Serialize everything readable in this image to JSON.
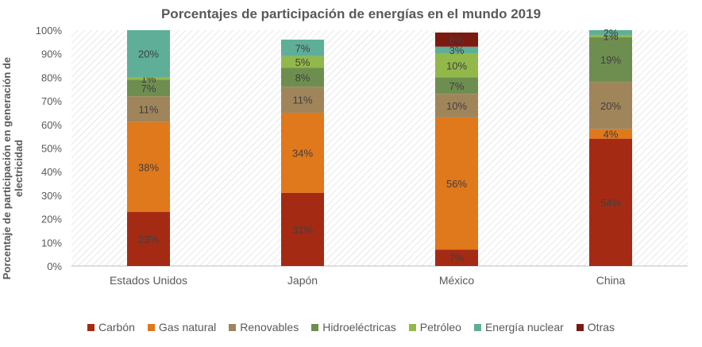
{
  "chart_data": {
    "type": "bar",
    "stacked": true,
    "title": "Porcentajes de participación de energías en el mundo 2019",
    "xlabel": "",
    "ylabel": "Porcentaje de participación en generación de electricidad",
    "ylim": [
      0,
      100
    ],
    "yticks": [
      "0%",
      "10%",
      "20%",
      "30%",
      "40%",
      "50%",
      "60%",
      "70%",
      "80%",
      "90%",
      "100%"
    ],
    "categories": [
      "Estados Unidos",
      "Japón",
      "México",
      "China"
    ],
    "series": [
      {
        "name": "Carbón",
        "color": "#A52A14",
        "values": [
          23,
          31,
          7,
          54
        ],
        "labels": [
          "23%",
          "31%",
          "7%",
          "54%"
        ]
      },
      {
        "name": "Gas natural",
        "color": "#E0781C",
        "values": [
          38,
          34,
          56,
          4
        ],
        "labels": [
          "38%",
          "34%",
          "56%",
          "4%"
        ]
      },
      {
        "name": "Renovables",
        "color": "#A0855B",
        "values": [
          11,
          11,
          10,
          20
        ],
        "labels": [
          "11%",
          "11%",
          "10%",
          "20%"
        ]
      },
      {
        "name": "Hidroeléctricas",
        "color": "#6E8E50",
        "values": [
          7,
          8,
          7,
          19
        ],
        "labels": [
          "7%",
          "8%",
          "7%",
          "19%"
        ]
      },
      {
        "name": "Petróleo",
        "color": "#92B74A",
        "values": [
          1,
          5,
          10,
          1
        ],
        "labels": [
          "1%",
          "5%",
          "10%",
          "1%"
        ]
      },
      {
        "name": "Energía nuclear",
        "color": "#5EAE98",
        "values": [
          20,
          7,
          3,
          2
        ],
        "labels": [
          "20%",
          "7%",
          "3%",
          "2%"
        ]
      },
      {
        "name": "Otras",
        "color": "#7B1A10",
        "values": [
          0,
          0,
          6,
          0
        ],
        "labels": [
          "",
          "",
          "6%",
          ""
        ]
      }
    ],
    "grid": true,
    "legend": "bottom"
  }
}
